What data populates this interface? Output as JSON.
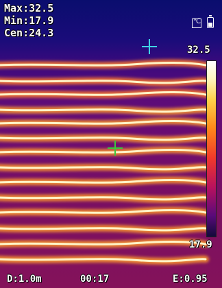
{
  "readouts": {
    "max": "Max:32.5",
    "min": "Min:17.9",
    "center": "Cen:24.3"
  },
  "scale": {
    "max_label": "32.5",
    "min_label": "17.9"
  },
  "footer": {
    "distance": "D:1.0m",
    "time": "00:17",
    "emissivity": "E:0.95"
  },
  "icons": {
    "unit": "celsius-unit-icon",
    "battery": "battery-icon"
  },
  "colors": {
    "max_cursor": "#3fd4e6",
    "center_cursor": "#3bc83b",
    "hot": "#fff4c8",
    "cold": "#0a0d6e"
  }
}
